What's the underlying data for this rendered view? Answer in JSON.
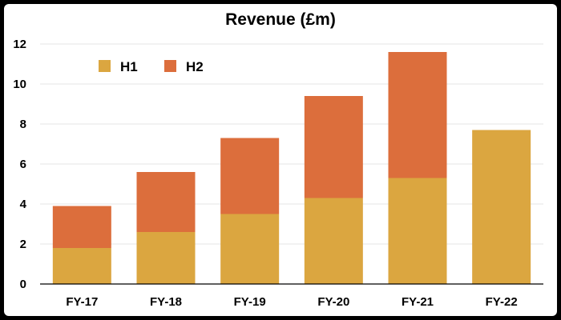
{
  "chart_data": {
    "type": "bar",
    "stacked": true,
    "title": "Revenue (£m)",
    "xlabel": "",
    "ylabel": "",
    "categories": [
      "FY-17",
      "FY-18",
      "FY-19",
      "FY-20",
      "FY-21",
      "FY-22"
    ],
    "series": [
      {
        "name": "H1",
        "color": "#dba640",
        "values": [
          1.8,
          2.6,
          3.5,
          4.3,
          5.3,
          7.7
        ]
      },
      {
        "name": "H2",
        "color": "#dc6e3c",
        "values": [
          2.1,
          3.0,
          3.8,
          5.1,
          6.3,
          0
        ]
      }
    ],
    "ylim": [
      0,
      12
    ],
    "yticks": [
      "0",
      "2",
      "4",
      "6",
      "8",
      "10",
      "12"
    ],
    "grid": true,
    "legend_position": "top-left"
  }
}
